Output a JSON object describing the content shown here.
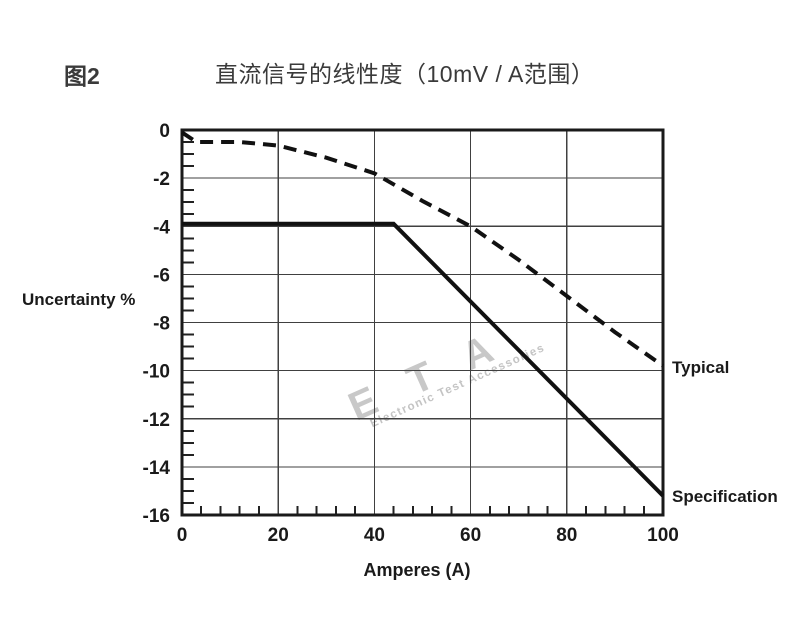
{
  "figure": {
    "label": "图2"
  },
  "chart_data": {
    "type": "line",
    "title": "直流信号的线性度（10mV / A范围）",
    "xlabel": "Amperes (A)",
    "ylabel": "Uncertainty %",
    "xlim": [
      0,
      100
    ],
    "ylim": [
      -16,
      0
    ],
    "x_ticks": [
      0,
      20,
      40,
      60,
      80,
      100
    ],
    "x_minor_step": 4,
    "y_ticks": [
      0,
      -2,
      -4,
      -6,
      -8,
      -10,
      -12,
      -14,
      -16
    ],
    "y_minor_step": 0.5,
    "grid": true,
    "legend_position": "right-of-line-ends",
    "series": [
      {
        "name": "Typical",
        "style": "dashed",
        "color": "#111111",
        "points": [
          [
            0,
            -0.1
          ],
          [
            3,
            -0.5
          ],
          [
            12,
            -0.5
          ],
          [
            20,
            -0.65
          ],
          [
            30,
            -1.15
          ],
          [
            40,
            -1.8
          ],
          [
            50,
            -2.95
          ],
          [
            60,
            -4.0
          ],
          [
            70,
            -5.4
          ],
          [
            80,
            -6.9
          ],
          [
            90,
            -8.4
          ],
          [
            100,
            -9.8
          ]
        ]
      },
      {
        "name": "Specification",
        "style": "solid",
        "color": "#111111",
        "points": [
          [
            0,
            -3.9
          ],
          [
            44,
            -3.9
          ],
          [
            100,
            -15.2
          ]
        ]
      }
    ],
    "watermark": {
      "text": "E T A",
      "subtext": "Electronic Test Accessories",
      "color": "#c8c8c8"
    }
  }
}
